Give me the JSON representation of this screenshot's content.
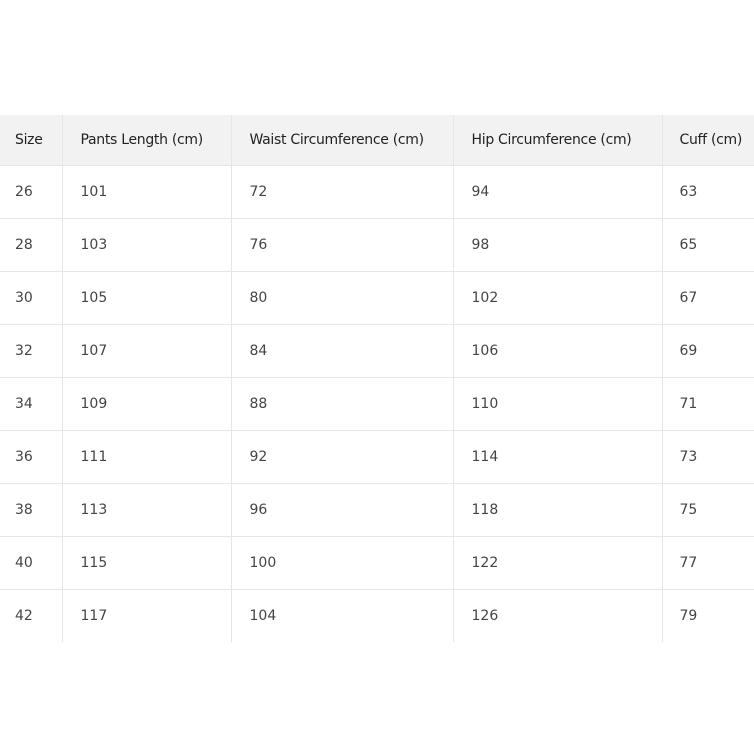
{
  "table": {
    "headers": [
      "Size",
      "Pants Length (cm)",
      "Waist Circumference (cm)",
      "Hip Circumference (cm)",
      "Cuff (cm)"
    ],
    "rows": [
      [
        "26",
        "101",
        "72",
        "94",
        "63"
      ],
      [
        "28",
        "103",
        "76",
        "98",
        "65"
      ],
      [
        "30",
        "105",
        "80",
        "102",
        "67"
      ],
      [
        "32",
        "107",
        "84",
        "106",
        "69"
      ],
      [
        "34",
        "109",
        "88",
        "110",
        "71"
      ],
      [
        "36",
        "111",
        "92",
        "114",
        "73"
      ],
      [
        "38",
        "113",
        "96",
        "118",
        "75"
      ],
      [
        "40",
        "115",
        "100",
        "122",
        "77"
      ],
      [
        "42",
        "117",
        "104",
        "126",
        "79"
      ]
    ]
  }
}
